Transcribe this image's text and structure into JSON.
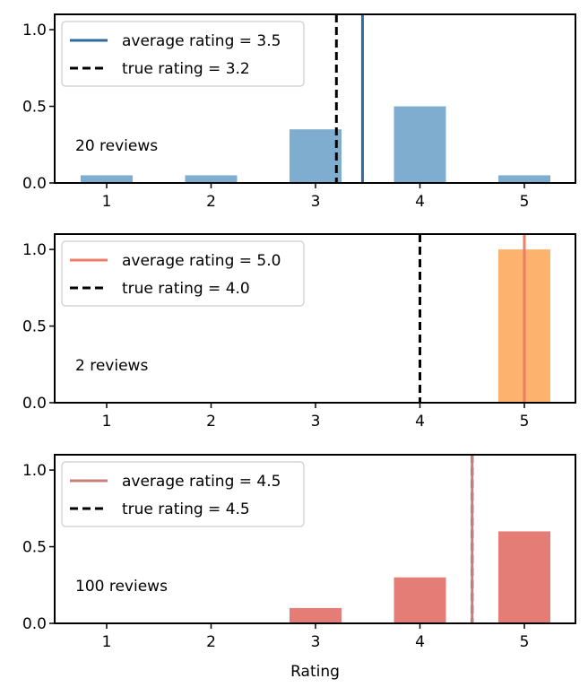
{
  "chart_data": [
    {
      "type": "bar",
      "categories": [
        "1",
        "2",
        "3",
        "4",
        "5"
      ],
      "values": [
        0.05,
        0.05,
        0.35,
        0.5,
        0.05
      ],
      "ylim": [
        0,
        1.1
      ],
      "yticks": [
        "0.0",
        "0.5",
        "1.0"
      ],
      "annotation": "20 reviews",
      "average_rating": 3.45,
      "true_rating": 3.2,
      "legend": [
        "average rating = 3.5",
        "true rating = 3.2"
      ],
      "legend_position": "top-left",
      "xlabel": "",
      "colors": {
        "bar": "#7fadd0",
        "average_line": "#2e6c9f",
        "true_line": "#000000"
      }
    },
    {
      "type": "bar",
      "categories": [
        "1",
        "2",
        "3",
        "4",
        "5"
      ],
      "values": [
        0,
        0,
        0,
        0,
        1.0
      ],
      "ylim": [
        0,
        1.1
      ],
      "yticks": [
        "0.0",
        "0.5",
        "1.0"
      ],
      "annotation": "2 reviews",
      "average_rating": 5.0,
      "true_rating": 4.0,
      "legend": [
        "average rating = 5.0",
        "true rating = 4.0"
      ],
      "legend_position": "top-left",
      "xlabel": "",
      "colors": {
        "bar": "#fdb36e",
        "average_line": "#ec7e68",
        "true_line": "#000000"
      }
    },
    {
      "type": "bar",
      "categories": [
        "1",
        "2",
        "3",
        "4",
        "5"
      ],
      "values": [
        0,
        0,
        0.1,
        0.3,
        0.6
      ],
      "ylim": [
        0,
        1.1
      ],
      "yticks": [
        "0.0",
        "0.5",
        "1.0"
      ],
      "annotation": "100 reviews",
      "average_rating": 4.5,
      "true_rating": 4.5,
      "legend": [
        "average rating = 4.5",
        "true rating = 4.5"
      ],
      "legend_position": "top-left",
      "xlabel": "Rating",
      "colors": {
        "bar": "#e37d76",
        "average_line": "#c87e7a",
        "true_line": "#000000"
      }
    }
  ]
}
